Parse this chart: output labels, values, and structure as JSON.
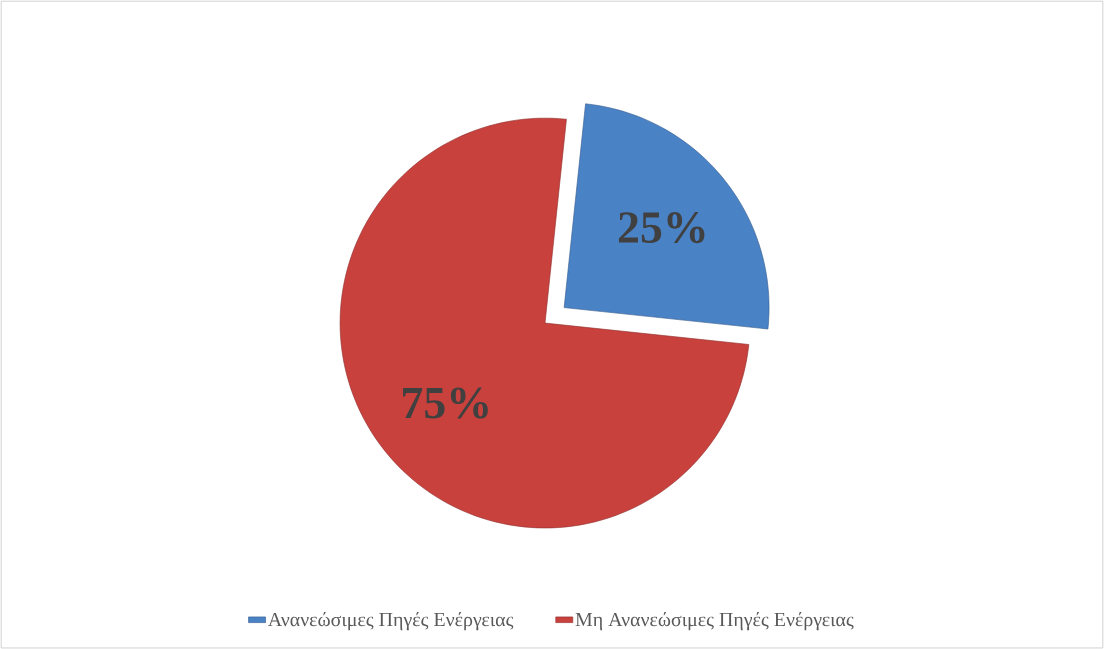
{
  "chart_data": {
    "type": "pie",
    "categories": [
      "Ανανεώσιμες Πηγές Ενέργειας",
      "Μη Ανανεώσιμες Πηγές Ενέργειας"
    ],
    "values": [
      25,
      75
    ],
    "colors": [
      "#4a82c6",
      "#c9413d"
    ],
    "value_labels": [
      "25%",
      "75%"
    ],
    "legend": "bottom"
  }
}
